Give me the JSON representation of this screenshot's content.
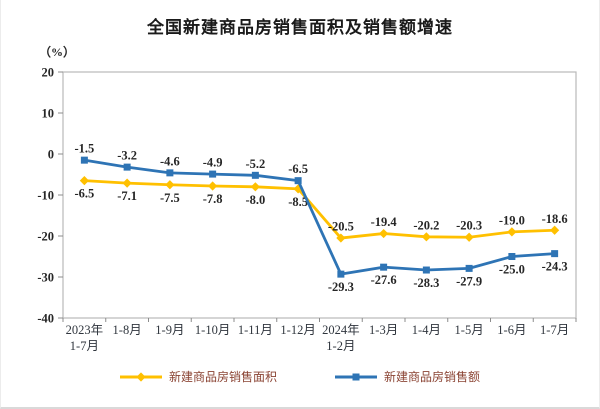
{
  "page": {
    "title": "全国新建商品房销售面积及销售额增速"
  },
  "chart_data": {
    "type": "line",
    "title": "全国新建商品房销售面积及销售额增速",
    "unit_label": "（%）",
    "categories": [
      [
        "2023年",
        "1-7月"
      ],
      [
        "1-8月"
      ],
      [
        "1-9月"
      ],
      [
        "1-10月"
      ],
      [
        "1-11月"
      ],
      [
        "1-12月"
      ],
      [
        "2024年",
        "1-2月"
      ],
      [
        "1-3月"
      ],
      [
        "1-4月"
      ],
      [
        "1-5月"
      ],
      [
        "1-6月"
      ],
      [
        "1-7月"
      ]
    ],
    "series": [
      {
        "name": "新建商品房销售面积",
        "color": "#FFC000",
        "marker": "diamond",
        "values": [
          -6.5,
          -7.1,
          -7.5,
          -7.8,
          -8.0,
          -8.5,
          -20.5,
          -19.4,
          -20.2,
          -20.3,
          -19.0,
          -18.6
        ],
        "label_side": [
          "below",
          "below",
          "below",
          "below",
          "below",
          "below",
          "above",
          "above",
          "above",
          "above",
          "above",
          "above"
        ]
      },
      {
        "name": "新建商品房销售额",
        "color": "#2E74B5",
        "marker": "square",
        "values": [
          -1.5,
          -3.2,
          -4.6,
          -4.9,
          -5.2,
          -6.5,
          -29.3,
          -27.6,
          -28.3,
          -27.9,
          -25.0,
          -24.3
        ],
        "label_side": [
          "above",
          "above",
          "above",
          "above",
          "above",
          "above",
          "below",
          "below",
          "below",
          "below",
          "below",
          "below"
        ]
      }
    ],
    "ylim": [
      -40,
      20
    ],
    "yticks": [
      20,
      10,
      0,
      -10,
      -20,
      -30,
      -40
    ],
    "grid": false,
    "legend_position": "bottom"
  }
}
